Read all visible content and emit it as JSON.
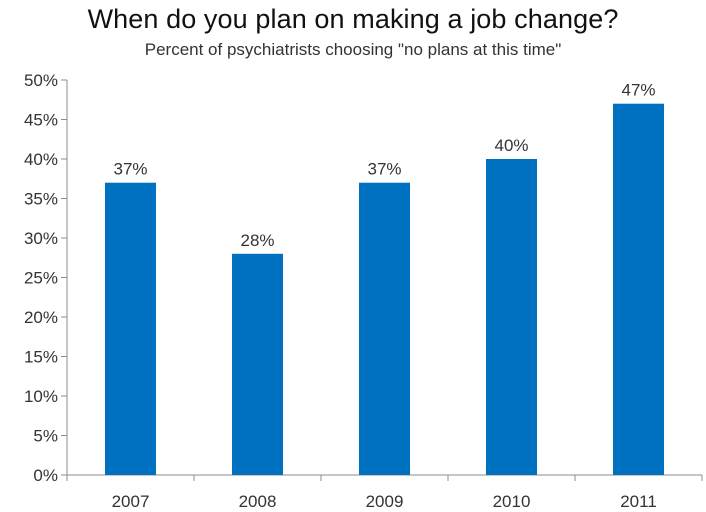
{
  "chart_data": {
    "type": "bar",
    "title": "When do you plan on making a job change?",
    "subtitle": "Percent of psychiatrists choosing \"no plans at this time\"",
    "categories": [
      "2007",
      "2008",
      "2009",
      "2010",
      "2011"
    ],
    "values": [
      37,
      28,
      37,
      40,
      47
    ],
    "data_labels": [
      "37%",
      "28%",
      "37%",
      "40%",
      "47%"
    ],
    "ylim": [
      0,
      50
    ],
    "yticks": [
      0,
      5,
      10,
      15,
      20,
      25,
      30,
      35,
      40,
      45,
      50
    ],
    "ytick_labels": [
      "0%",
      "5%",
      "10%",
      "15%",
      "20%",
      "25%",
      "30%",
      "35%",
      "40%",
      "45%",
      "50%"
    ],
    "xlabel": "",
    "ylabel": "",
    "grid": false,
    "bar_color": "#0070C0"
  }
}
